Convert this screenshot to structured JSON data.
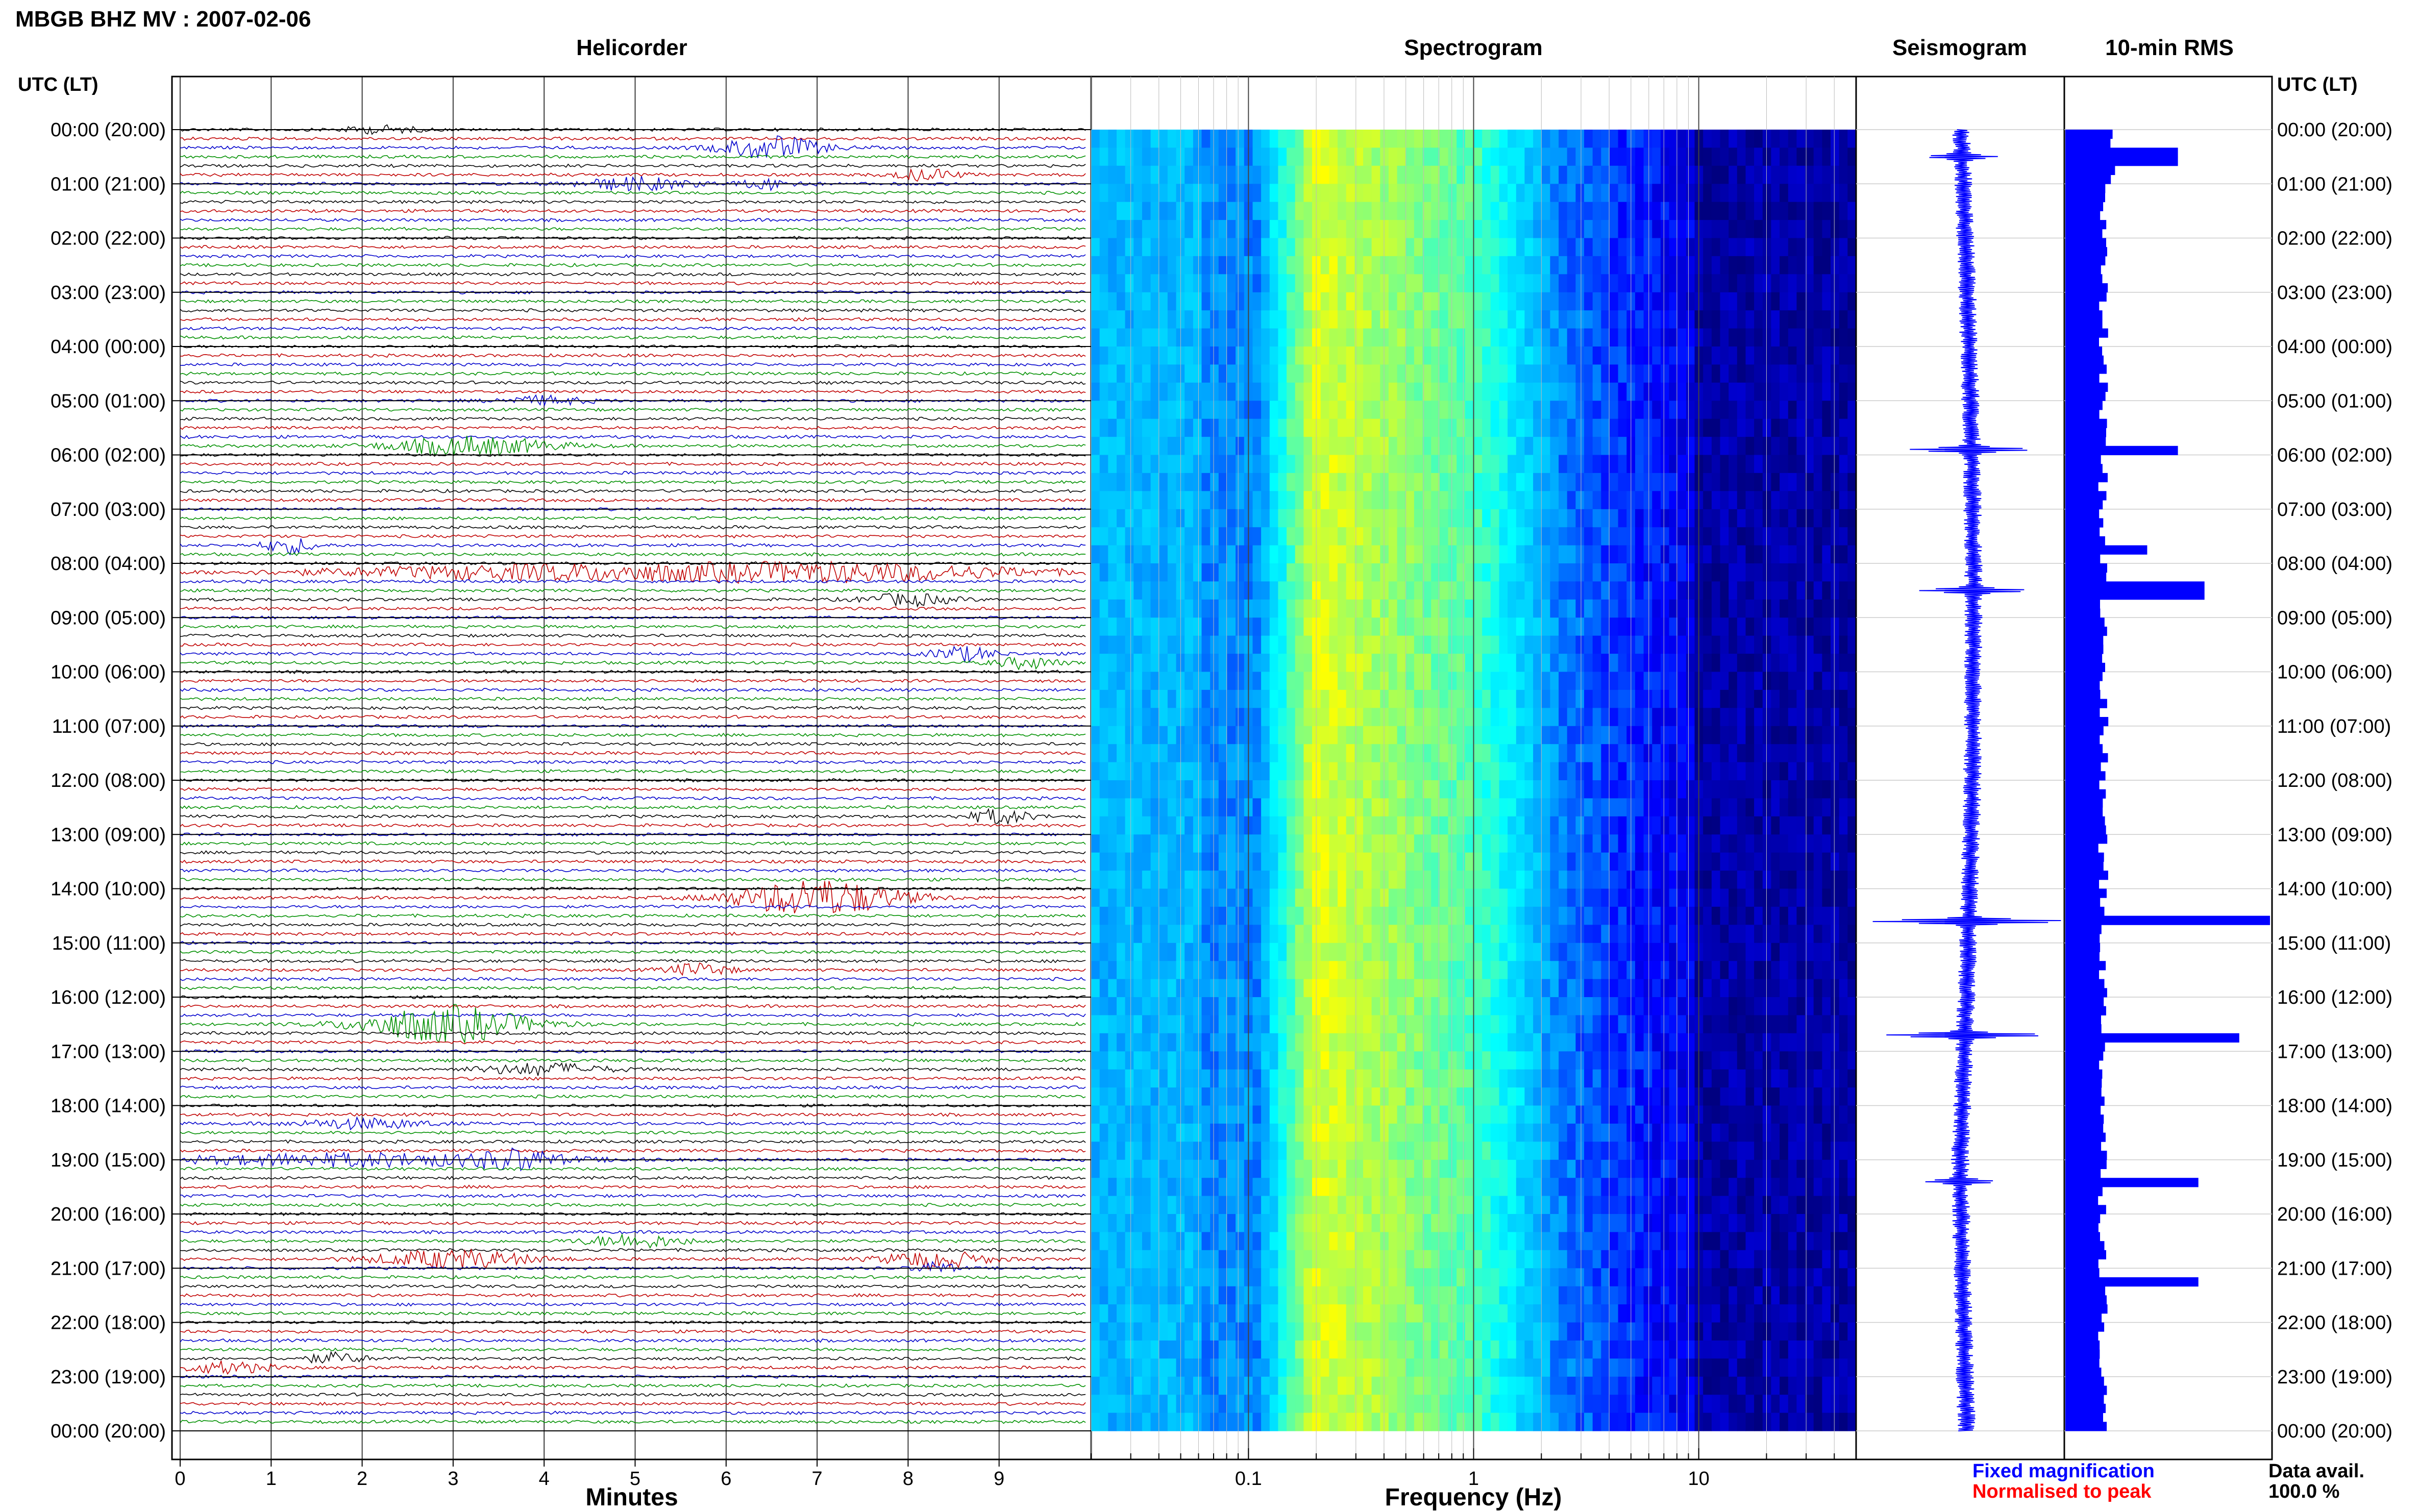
{
  "header": {
    "title": "MBGB BHZ MV : 2007-02-06"
  },
  "panels": {
    "helicorder_title": "Helicorder",
    "spectrogram_title": "Spectrogram",
    "seismogram_title": "Seismogram",
    "rms_title": "10-min RMS"
  },
  "time_axis": {
    "label": "UTC (LT)",
    "ticks": [
      "00:00 (20:00)",
      "01:00 (21:00)",
      "02:00 (22:00)",
      "03:00 (23:00)",
      "04:00 (00:00)",
      "05:00 (01:00)",
      "06:00 (02:00)",
      "07:00 (03:00)",
      "08:00 (04:00)",
      "09:00 (05:00)",
      "10:00 (06:00)",
      "11:00 (07:00)",
      "12:00 (08:00)",
      "13:00 (09:00)",
      "14:00 (10:00)",
      "15:00 (11:00)",
      "16:00 (12:00)",
      "17:00 (13:00)",
      "18:00 (14:00)",
      "19:00 (15:00)",
      "20:00 (16:00)",
      "21:00 (17:00)",
      "22:00 (18:00)",
      "23:00 (19:00)",
      "00:00 (20:00)"
    ]
  },
  "legend": {
    "fixed": "Fixed magnification",
    "normalised": "Normalised to peak"
  },
  "availability": {
    "label": "Data avail.",
    "value": "100.0 %"
  },
  "colors": {
    "trace_cycle": [
      "#000000",
      "#c00000",
      "#0000cc",
      "#009000"
    ],
    "rms_bar": "#0000ff",
    "seismogram": "#0000ff"
  },
  "chart_data": [
    {
      "type": "line",
      "name": "helicorder",
      "xlabel": "Minutes",
      "x_ticks": [
        "0",
        "1",
        "2",
        "3",
        "4",
        "5",
        "6",
        "7",
        "8",
        "9"
      ],
      "xlim": [
        0,
        10
      ],
      "rows": 144,
      "minutes_per_row": 10,
      "events": [
        {
          "hour": 0.0,
          "minute": 2.2,
          "amp": 0.5,
          "dur": 0.6
        },
        {
          "hour": 0.33,
          "minute": 6.5,
          "amp": 1.6,
          "dur": 0.8
        },
        {
          "hour": 0.83,
          "minute": 8.2,
          "amp": 0.8,
          "dur": 0.5
        },
        {
          "hour": 1.0,
          "minute": 5.0,
          "amp": 0.9,
          "dur": 0.9
        },
        {
          "hour": 1.0,
          "minute": 6.5,
          "amp": 0.7,
          "dur": 0.5
        },
        {
          "hour": 5.0,
          "minute": 4.0,
          "amp": 0.6,
          "dur": 0.7
        },
        {
          "hour": 5.83,
          "minute": 3.2,
          "amp": 1.3,
          "dur": 1.3
        },
        {
          "hour": 7.67,
          "minute": 1.2,
          "amp": 1.1,
          "dur": 0.4
        },
        {
          "hour": 8.17,
          "minute": 4.0,
          "amp": 1.0,
          "dur": 3.5
        },
        {
          "hour": 8.17,
          "minute": 7.3,
          "amp": 1.2,
          "dur": 3.0
        },
        {
          "hour": 8.67,
          "minute": 8.0,
          "amp": 0.8,
          "dur": 0.7
        },
        {
          "hour": 9.67,
          "minute": 8.6,
          "amp": 1.0,
          "dur": 0.5
        },
        {
          "hour": 9.83,
          "minute": 9.3,
          "amp": 0.8,
          "dur": 0.5
        },
        {
          "hour": 12.67,
          "minute": 9.0,
          "amp": 1.0,
          "dur": 0.5
        },
        {
          "hour": 14.17,
          "minute": 7.0,
          "amp": 2.6,
          "dur": 1.3
        },
        {
          "hour": 16.5,
          "minute": 2.9,
          "amp": 2.6,
          "dur": 1.3
        },
        {
          "hour": 15.5,
          "minute": 5.7,
          "amp": 0.9,
          "dur": 0.5
        },
        {
          "hour": 17.33,
          "minute": 4.0,
          "amp": 0.8,
          "dur": 1.0
        },
        {
          "hour": 18.33,
          "minute": 2.0,
          "amp": 0.7,
          "dur": 1.0
        },
        {
          "hour": 19.0,
          "minute": 2.0,
          "amp": 0.9,
          "dur": 3.0
        },
        {
          "hour": 19.0,
          "minute": 3.7,
          "amp": 1.2,
          "dur": 0.6
        },
        {
          "hour": 20.83,
          "minute": 3.0,
          "amp": 1.3,
          "dur": 1.2
        },
        {
          "hour": 20.83,
          "minute": 8.3,
          "amp": 1.2,
          "dur": 0.8
        },
        {
          "hour": 20.5,
          "minute": 5.0,
          "amp": 0.9,
          "dur": 0.8
        },
        {
          "hour": 21.0,
          "minute": 8.3,
          "amp": 0.8,
          "dur": 0.3
        },
        {
          "hour": 22.67,
          "minute": 1.7,
          "amp": 0.7,
          "dur": 0.5
        },
        {
          "hour": 22.83,
          "minute": 0.5,
          "amp": 0.8,
          "dur": 0.7
        }
      ]
    },
    {
      "type": "heatmap",
      "name": "spectrogram",
      "xlabel": "Frequency (Hz)",
      "x_scale": "log",
      "xlim": [
        0.02,
        50
      ],
      "x_ticks": [
        0.1,
        1,
        10
      ],
      "x_tick_labels": [
        "0.1",
        "1",
        "10"
      ],
      "peak_band_hz": [
        0.2,
        1.0
      ],
      "colormap": [
        "#000080",
        "#0000ff",
        "#00a0ff",
        "#00ffff",
        "#80ff80",
        "#ffff00"
      ]
    },
    {
      "type": "line",
      "name": "seismogram",
      "events": [
        {
          "hour": 0.5,
          "amp": 0.3
        },
        {
          "hour": 5.9,
          "amp": 0.6
        },
        {
          "hour": 8.5,
          "amp": 0.5
        },
        {
          "hour": 14.6,
          "amp": 1.0
        },
        {
          "hour": 16.7,
          "amp": 0.8
        },
        {
          "hour": 19.4,
          "amp": 0.3
        }
      ]
    },
    {
      "type": "bar",
      "name": "10-min RMS",
      "orientation": "horizontal",
      "categories_per_hour": 6,
      "peaks": [
        {
          "hour": 0.5,
          "value": 0.55
        },
        {
          "hour": 5.9,
          "value": 0.55
        },
        {
          "hour": 7.8,
          "value": 0.4
        },
        {
          "hour": 8.5,
          "value": 0.68
        },
        {
          "hour": 14.6,
          "value": 1.0
        },
        {
          "hour": 16.8,
          "value": 0.85
        },
        {
          "hour": 19.4,
          "value": 0.65
        },
        {
          "hour": 21.2,
          "value": 0.65
        }
      ]
    }
  ]
}
